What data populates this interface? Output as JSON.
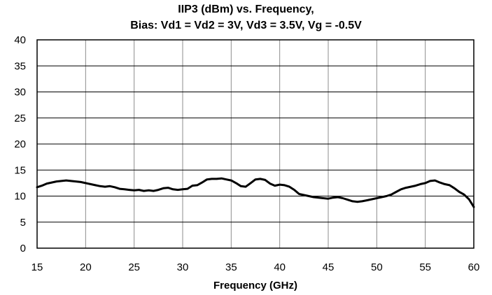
{
  "chart_data": {
    "type": "line",
    "title": "IIP3 (dBm) vs. Frequency,",
    "subtitle": "Bias: Vd1 = Vd2 = 3V, Vd3 = 3.5V, Vg = -0.5V",
    "xlabel": "Frequency (GHz)",
    "ylabel": "",
    "xlim": [
      15,
      60
    ],
    "ylim": [
      0,
      40
    ],
    "xticks": [
      15,
      20,
      25,
      30,
      35,
      40,
      45,
      50,
      55,
      60
    ],
    "yticks": [
      0,
      5,
      10,
      15,
      20,
      25,
      30,
      35,
      40
    ],
    "grid": true,
    "series": [
      {
        "color": "#000000",
        "x": [
          15,
          15.5,
          16,
          16.5,
          17,
          17.5,
          18,
          18.5,
          19,
          19.5,
          20,
          20.5,
          21,
          21.5,
          22,
          22.5,
          23,
          23.5,
          24,
          24.5,
          25,
          25.5,
          26,
          26.5,
          27,
          27.5,
          28,
          28.5,
          29,
          29.5,
          30,
          30.5,
          31,
          31.5,
          32,
          32.5,
          33,
          33.5,
          34,
          34.5,
          35,
          35.5,
          36,
          36.5,
          37,
          37.5,
          38,
          38.5,
          39,
          39.5,
          40,
          40.5,
          41,
          41.5,
          42,
          42.5,
          43,
          43.5,
          44,
          44.5,
          45,
          45.5,
          46,
          46.5,
          47,
          47.5,
          48,
          48.5,
          49,
          49.5,
          50,
          50.5,
          51,
          51.5,
          52,
          52.5,
          53,
          53.5,
          54,
          54.5,
          55,
          55.5,
          56,
          56.5,
          57,
          57.5,
          58,
          58.5,
          59,
          59.5,
          60
        ],
        "y": [
          11.7,
          12.0,
          12.4,
          12.6,
          12.8,
          12.9,
          13.0,
          12.9,
          12.8,
          12.7,
          12.5,
          12.3,
          12.1,
          11.9,
          11.8,
          11.9,
          11.7,
          11.4,
          11.3,
          11.2,
          11.1,
          11.2,
          11.0,
          11.1,
          11.0,
          11.2,
          11.5,
          11.6,
          11.3,
          11.2,
          11.3,
          11.4,
          12.0,
          12.1,
          12.6,
          13.2,
          13.3,
          13.3,
          13.4,
          13.2,
          13.0,
          12.5,
          11.9,
          11.8,
          12.5,
          13.2,
          13.3,
          13.1,
          12.4,
          12.0,
          12.2,
          12.1,
          11.8,
          11.2,
          10.4,
          10.2,
          10.0,
          9.8,
          9.7,
          9.6,
          9.5,
          9.7,
          9.8,
          9.6,
          9.3,
          9.0,
          8.9,
          9.0,
          9.2,
          9.4,
          9.6,
          9.8,
          10.0,
          10.3,
          10.8,
          11.3,
          11.6,
          11.8,
          12.0,
          12.3,
          12.5,
          12.9,
          13.0,
          12.6,
          12.3,
          12.1,
          11.5,
          10.8,
          10.3,
          9.4,
          7.9
        ]
      }
    ]
  }
}
